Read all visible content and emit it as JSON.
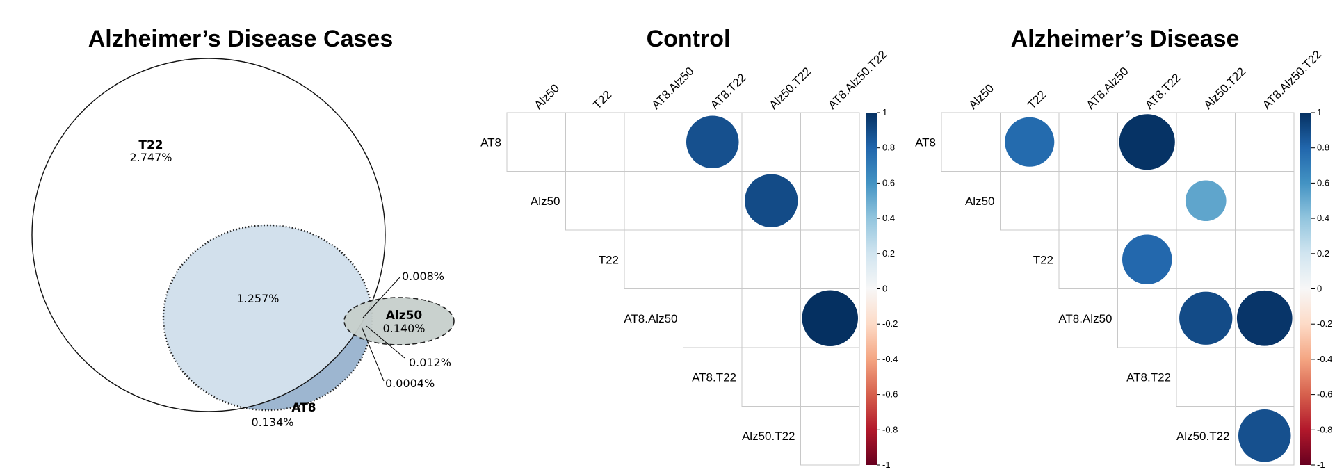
{
  "chart_data": [
    {
      "type": "venn",
      "title": "Alzheimer’s Disease Cases",
      "sets": [
        {
          "name": "T22",
          "value": "2.747%"
        },
        {
          "name": "AT8",
          "value": "0.134%"
        },
        {
          "name": "Alz50",
          "value": "0.140%"
        }
      ],
      "intersections": [
        {
          "sets": [
            "T22",
            "AT8"
          ],
          "value": "1.257%"
        },
        {
          "sets": [
            "T22",
            "Alz50"
          ],
          "value": "0.008%"
        },
        {
          "sets": [
            "AT8",
            "Alz50"
          ],
          "value": "0.012%"
        },
        {
          "sets": [
            "T22",
            "AT8",
            "Alz50"
          ],
          "value": "0.0004%"
        }
      ],
      "colors": {
        "t22": "#ffffff",
        "at8": "#d2e0ec",
        "at8_only": "#9db6d0",
        "alz50": "#c6cfcb",
        "outline": "#000000"
      }
    },
    {
      "type": "heatmap",
      "title": "Control",
      "labels": [
        "AT8",
        "Alz50",
        "T22",
        "AT8.Alz50",
        "AT8.T22",
        "Alz50.T22",
        "AT8.Alz50.T22"
      ],
      "cells": [
        {
          "row": "AT8",
          "col": "AT8.T22",
          "value": 0.88
        },
        {
          "row": "Alz50",
          "col": "Alz50.T22",
          "value": 0.9
        },
        {
          "row": "AT8.Alz50",
          "col": "AT8.Alz50.T22",
          "value": 1.0
        }
      ],
      "colorbar": {
        "min": -1,
        "max": 1,
        "ticks": [
          "1",
          "0.8",
          "0.6",
          "0.4",
          "0.2",
          "0",
          "-0.2",
          "-0.4",
          "-0.6",
          "-0.8",
          "-1"
        ]
      }
    },
    {
      "type": "heatmap",
      "title": "Alzheimer’s Disease",
      "labels": [
        "AT8",
        "Alz50",
        "T22",
        "AT8.Alz50",
        "AT8.T22",
        "Alz50.T22",
        "AT8.Alz50.T22"
      ],
      "cells": [
        {
          "row": "AT8",
          "col": "T22",
          "value": 0.78
        },
        {
          "row": "AT8",
          "col": "AT8.T22",
          "value": 0.99
        },
        {
          "row": "Alz50",
          "col": "Alz50.T22",
          "value": 0.53
        },
        {
          "row": "T22",
          "col": "AT8.T22",
          "value": 0.79
        },
        {
          "row": "AT8.Alz50",
          "col": "Alz50.T22",
          "value": 0.9
        },
        {
          "row": "AT8.Alz50",
          "col": "AT8.Alz50.T22",
          "value": 0.98
        },
        {
          "row": "Alz50.T22",
          "col": "AT8.Alz50.T22",
          "value": 0.88
        }
      ],
      "colorbar": {
        "min": -1,
        "max": 1,
        "ticks": [
          "1",
          "0.8",
          "0.6",
          "0.4",
          "0.2",
          "0",
          "-0.2",
          "-0.4",
          "-0.6",
          "-0.8",
          "-1"
        ]
      }
    }
  ]
}
